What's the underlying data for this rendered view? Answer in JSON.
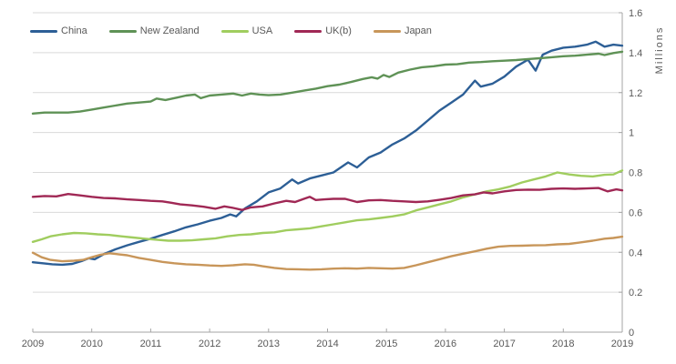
{
  "chart": {
    "axis_title_y": "Millions",
    "y_ticks": [
      "0",
      "0.2",
      "0.4",
      "0.6",
      "0.8",
      "1",
      "1.2",
      "1.4",
      "1.6"
    ],
    "y_tick_values": [
      0,
      0.2,
      0.4,
      0.6,
      0.8,
      1.0,
      1.2,
      1.4,
      1.6
    ],
    "x_ticks": [
      "2009",
      "2010",
      "2011",
      "2012",
      "2013",
      "2014",
      "2015",
      "2016",
      "2017",
      "2018",
      "2019"
    ],
    "x_tick_values": [
      2009,
      2010,
      2011,
      2012,
      2013,
      2014,
      2015,
      2016,
      2017,
      2018,
      2019
    ],
    "colors": {
      "grid": "#d9d9d9",
      "axis": "#a6a6a6",
      "text": "#595959",
      "background": "#ffffff"
    }
  },
  "chart_data": {
    "type": "line",
    "title": "",
    "xlabel": "",
    "ylabel": "Millions",
    "ylim": [
      0,
      1.6
    ],
    "x_range": [
      2009,
      2019
    ],
    "grid": "horizontal",
    "legend_position": "top-left",
    "series": [
      {
        "name": "China",
        "color": "#2d5f96",
        "points": [
          [
            2009.0,
            0.35
          ],
          [
            2009.17,
            0.345
          ],
          [
            2009.33,
            0.34
          ],
          [
            2009.5,
            0.338
          ],
          [
            2009.67,
            0.342
          ],
          [
            2009.83,
            0.356
          ],
          [
            2009.95,
            0.37
          ],
          [
            2010.05,
            0.365
          ],
          [
            2010.2,
            0.39
          ],
          [
            2010.4,
            0.415
          ],
          [
            2010.6,
            0.435
          ],
          [
            2010.8,
            0.452
          ],
          [
            2011.0,
            0.468
          ],
          [
            2011.2,
            0.487
          ],
          [
            2011.4,
            0.505
          ],
          [
            2011.6,
            0.525
          ],
          [
            2011.8,
            0.54
          ],
          [
            2012.0,
            0.558
          ],
          [
            2012.2,
            0.572
          ],
          [
            2012.35,
            0.59
          ],
          [
            2012.45,
            0.58
          ],
          [
            2012.6,
            0.62
          ],
          [
            2012.8,
            0.655
          ],
          [
            2013.0,
            0.7
          ],
          [
            2013.2,
            0.72
          ],
          [
            2013.4,
            0.765
          ],
          [
            2013.5,
            0.745
          ],
          [
            2013.7,
            0.77
          ],
          [
            2013.9,
            0.785
          ],
          [
            2014.1,
            0.8
          ],
          [
            2014.35,
            0.85
          ],
          [
            2014.5,
            0.825
          ],
          [
            2014.7,
            0.875
          ],
          [
            2014.9,
            0.9
          ],
          [
            2015.1,
            0.94
          ],
          [
            2015.3,
            0.97
          ],
          [
            2015.5,
            1.01
          ],
          [
            2015.7,
            1.06
          ],
          [
            2015.9,
            1.11
          ],
          [
            2016.1,
            1.15
          ],
          [
            2016.3,
            1.19
          ],
          [
            2016.5,
            1.26
          ],
          [
            2016.6,
            1.23
          ],
          [
            2016.8,
            1.245
          ],
          [
            2017.0,
            1.28
          ],
          [
            2017.2,
            1.33
          ],
          [
            2017.4,
            1.365
          ],
          [
            2017.53,
            1.31
          ],
          [
            2017.65,
            1.39
          ],
          [
            2017.8,
            1.41
          ],
          [
            2018.0,
            1.425
          ],
          [
            2018.2,
            1.43
          ],
          [
            2018.4,
            1.44
          ],
          [
            2018.55,
            1.455
          ],
          [
            2018.7,
            1.43
          ],
          [
            2018.85,
            1.44
          ],
          [
            2019.0,
            1.435
          ]
        ]
      },
      {
        "name": "New Zealand",
        "color": "#5f9256",
        "points": [
          [
            2009.0,
            1.095
          ],
          [
            2009.2,
            1.1
          ],
          [
            2009.4,
            1.1
          ],
          [
            2009.6,
            1.1
          ],
          [
            2009.8,
            1.105
          ],
          [
            2010.0,
            1.115
          ],
          [
            2010.2,
            1.125
          ],
          [
            2010.4,
            1.135
          ],
          [
            2010.6,
            1.145
          ],
          [
            2010.8,
            1.15
          ],
          [
            2011.0,
            1.155
          ],
          [
            2011.1,
            1.17
          ],
          [
            2011.25,
            1.163
          ],
          [
            2011.45,
            1.175
          ],
          [
            2011.6,
            1.185
          ],
          [
            2011.75,
            1.19
          ],
          [
            2011.85,
            1.172
          ],
          [
            2012.0,
            1.185
          ],
          [
            2012.2,
            1.19
          ],
          [
            2012.4,
            1.195
          ],
          [
            2012.55,
            1.185
          ],
          [
            2012.7,
            1.195
          ],
          [
            2012.85,
            1.19
          ],
          [
            2013.0,
            1.187
          ],
          [
            2013.2,
            1.19
          ],
          [
            2013.4,
            1.2
          ],
          [
            2013.6,
            1.21
          ],
          [
            2013.8,
            1.22
          ],
          [
            2014.0,
            1.232
          ],
          [
            2014.2,
            1.24
          ],
          [
            2014.4,
            1.253
          ],
          [
            2014.6,
            1.268
          ],
          [
            2014.75,
            1.277
          ],
          [
            2014.85,
            1.27
          ],
          [
            2014.95,
            1.288
          ],
          [
            2015.05,
            1.278
          ],
          [
            2015.2,
            1.3
          ],
          [
            2015.4,
            1.315
          ],
          [
            2015.6,
            1.327
          ],
          [
            2015.8,
            1.332
          ],
          [
            2016.0,
            1.34
          ],
          [
            2016.2,
            1.342
          ],
          [
            2016.4,
            1.35
          ],
          [
            2016.6,
            1.353
          ],
          [
            2016.8,
            1.357
          ],
          [
            2017.0,
            1.36
          ],
          [
            2017.2,
            1.363
          ],
          [
            2017.4,
            1.368
          ],
          [
            2017.6,
            1.372
          ],
          [
            2017.8,
            1.377
          ],
          [
            2018.0,
            1.382
          ],
          [
            2018.2,
            1.385
          ],
          [
            2018.4,
            1.39
          ],
          [
            2018.6,
            1.395
          ],
          [
            2018.7,
            1.388
          ],
          [
            2018.85,
            1.398
          ],
          [
            2019.0,
            1.405
          ]
        ]
      },
      {
        "name": "USA",
        "color": "#a0cd5f",
        "points": [
          [
            2009.0,
            0.452
          ],
          [
            2009.15,
            0.465
          ],
          [
            2009.3,
            0.48
          ],
          [
            2009.5,
            0.49
          ],
          [
            2009.7,
            0.497
          ],
          [
            2009.9,
            0.495
          ],
          [
            2010.1,
            0.49
          ],
          [
            2010.3,
            0.487
          ],
          [
            2010.5,
            0.48
          ],
          [
            2010.7,
            0.474
          ],
          [
            2010.9,
            0.468
          ],
          [
            2011.1,
            0.463
          ],
          [
            2011.3,
            0.458
          ],
          [
            2011.5,
            0.458
          ],
          [
            2011.7,
            0.46
          ],
          [
            2011.9,
            0.465
          ],
          [
            2012.1,
            0.47
          ],
          [
            2012.3,
            0.48
          ],
          [
            2012.5,
            0.487
          ],
          [
            2012.7,
            0.49
          ],
          [
            2012.9,
            0.497
          ],
          [
            2013.1,
            0.5
          ],
          [
            2013.3,
            0.51
          ],
          [
            2013.5,
            0.515
          ],
          [
            2013.7,
            0.52
          ],
          [
            2013.9,
            0.53
          ],
          [
            2014.1,
            0.54
          ],
          [
            2014.3,
            0.55
          ],
          [
            2014.5,
            0.56
          ],
          [
            2014.7,
            0.565
          ],
          [
            2014.9,
            0.572
          ],
          [
            2015.1,
            0.58
          ],
          [
            2015.3,
            0.59
          ],
          [
            2015.5,
            0.61
          ],
          [
            2015.7,
            0.625
          ],
          [
            2015.9,
            0.64
          ],
          [
            2016.1,
            0.655
          ],
          [
            2016.3,
            0.675
          ],
          [
            2016.5,
            0.69
          ],
          [
            2016.7,
            0.705
          ],
          [
            2016.9,
            0.715
          ],
          [
            2017.1,
            0.73
          ],
          [
            2017.3,
            0.75
          ],
          [
            2017.5,
            0.765
          ],
          [
            2017.7,
            0.78
          ],
          [
            2017.9,
            0.8
          ],
          [
            2018.1,
            0.79
          ],
          [
            2018.3,
            0.783
          ],
          [
            2018.5,
            0.78
          ],
          [
            2018.7,
            0.788
          ],
          [
            2018.85,
            0.79
          ],
          [
            2019.0,
            0.81
          ]
        ]
      },
      {
        "name": "UK(b)",
        "color": "#a02855",
        "points": [
          [
            2009.0,
            0.678
          ],
          [
            2009.2,
            0.682
          ],
          [
            2009.4,
            0.68
          ],
          [
            2009.6,
            0.692
          ],
          [
            2009.8,
            0.685
          ],
          [
            2010.0,
            0.678
          ],
          [
            2010.2,
            0.672
          ],
          [
            2010.4,
            0.67
          ],
          [
            2010.6,
            0.665
          ],
          [
            2010.8,
            0.662
          ],
          [
            2011.0,
            0.658
          ],
          [
            2011.2,
            0.655
          ],
          [
            2011.35,
            0.648
          ],
          [
            2011.5,
            0.64
          ],
          [
            2011.7,
            0.635
          ],
          [
            2011.9,
            0.628
          ],
          [
            2012.1,
            0.618
          ],
          [
            2012.25,
            0.63
          ],
          [
            2012.4,
            0.622
          ],
          [
            2012.55,
            0.612
          ],
          [
            2012.7,
            0.625
          ],
          [
            2012.9,
            0.63
          ],
          [
            2013.1,
            0.645
          ],
          [
            2013.3,
            0.658
          ],
          [
            2013.45,
            0.652
          ],
          [
            2013.6,
            0.668
          ],
          [
            2013.7,
            0.678
          ],
          [
            2013.8,
            0.662
          ],
          [
            2013.95,
            0.665
          ],
          [
            2014.1,
            0.668
          ],
          [
            2014.3,
            0.668
          ],
          [
            2014.5,
            0.652
          ],
          [
            2014.7,
            0.66
          ],
          [
            2014.9,
            0.662
          ],
          [
            2015.1,
            0.658
          ],
          [
            2015.3,
            0.655
          ],
          [
            2015.5,
            0.652
          ],
          [
            2015.7,
            0.655
          ],
          [
            2015.9,
            0.663
          ],
          [
            2016.1,
            0.672
          ],
          [
            2016.3,
            0.685
          ],
          [
            2016.5,
            0.69
          ],
          [
            2016.65,
            0.7
          ],
          [
            2016.8,
            0.695
          ],
          [
            2017.0,
            0.705
          ],
          [
            2017.2,
            0.712
          ],
          [
            2017.4,
            0.714
          ],
          [
            2017.6,
            0.713
          ],
          [
            2017.8,
            0.718
          ],
          [
            2018.0,
            0.72
          ],
          [
            2018.2,
            0.718
          ],
          [
            2018.4,
            0.72
          ],
          [
            2018.6,
            0.722
          ],
          [
            2018.75,
            0.705
          ],
          [
            2018.9,
            0.715
          ],
          [
            2019.0,
            0.71
          ]
        ]
      },
      {
        "name": "Japan",
        "color": "#c8965a",
        "points": [
          [
            2009.0,
            0.398
          ],
          [
            2009.15,
            0.375
          ],
          [
            2009.3,
            0.362
          ],
          [
            2009.5,
            0.355
          ],
          [
            2009.7,
            0.358
          ],
          [
            2009.85,
            0.362
          ],
          [
            2010.0,
            0.375
          ],
          [
            2010.15,
            0.388
          ],
          [
            2010.3,
            0.395
          ],
          [
            2010.45,
            0.39
          ],
          [
            2010.6,
            0.385
          ],
          [
            2010.8,
            0.372
          ],
          [
            2011.0,
            0.362
          ],
          [
            2011.2,
            0.352
          ],
          [
            2011.4,
            0.345
          ],
          [
            2011.6,
            0.34
          ],
          [
            2011.8,
            0.338
          ],
          [
            2012.0,
            0.334
          ],
          [
            2012.2,
            0.332
          ],
          [
            2012.4,
            0.335
          ],
          [
            2012.6,
            0.34
          ],
          [
            2012.75,
            0.338
          ],
          [
            2012.9,
            0.33
          ],
          [
            2013.1,
            0.322
          ],
          [
            2013.3,
            0.316
          ],
          [
            2013.5,
            0.315
          ],
          [
            2013.7,
            0.313
          ],
          [
            2013.9,
            0.315
          ],
          [
            2014.1,
            0.318
          ],
          [
            2014.3,
            0.32
          ],
          [
            2014.5,
            0.318
          ],
          [
            2014.7,
            0.322
          ],
          [
            2014.9,
            0.32
          ],
          [
            2015.1,
            0.318
          ],
          [
            2015.3,
            0.322
          ],
          [
            2015.5,
            0.335
          ],
          [
            2015.7,
            0.35
          ],
          [
            2015.9,
            0.365
          ],
          [
            2016.1,
            0.38
          ],
          [
            2016.3,
            0.393
          ],
          [
            2016.5,
            0.405
          ],
          [
            2016.7,
            0.418
          ],
          [
            2016.9,
            0.428
          ],
          [
            2017.1,
            0.432
          ],
          [
            2017.3,
            0.433
          ],
          [
            2017.5,
            0.435
          ],
          [
            2017.7,
            0.436
          ],
          [
            2017.9,
            0.44
          ],
          [
            2018.1,
            0.442
          ],
          [
            2018.3,
            0.45
          ],
          [
            2018.5,
            0.458
          ],
          [
            2018.7,
            0.468
          ],
          [
            2018.85,
            0.472
          ],
          [
            2019.0,
            0.478
          ]
        ]
      }
    ]
  }
}
